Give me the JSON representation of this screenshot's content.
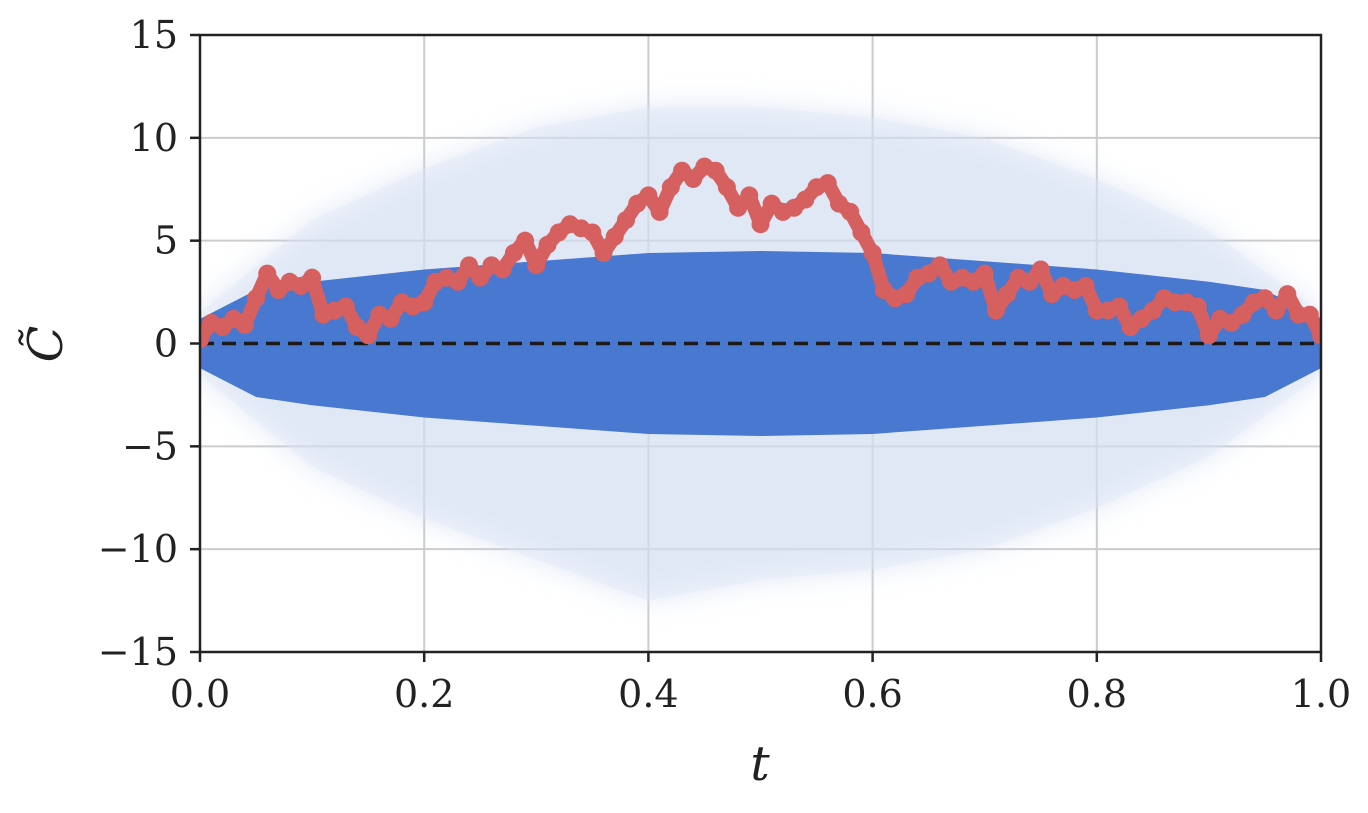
{
  "chart_data": {
    "type": "scatter",
    "title": "",
    "xlabel": "t",
    "ylabel": "C̃",
    "xlim": [
      0.0,
      1.0
    ],
    "ylim": [
      -15,
      15
    ],
    "x_ticks": [
      "0.0",
      "0.2",
      "0.4",
      "0.6",
      "0.8",
      "1.0"
    ],
    "y_ticks": [
      "15",
      "10",
      "5",
      "0",
      "−5",
      "−10",
      "−15"
    ],
    "grid": true,
    "legend": "none",
    "reference_line": {
      "y": 0,
      "style": "dashed",
      "color": "#1a1a1a"
    },
    "colors": {
      "band": "#4878cf",
      "highlight": "#d65f5f",
      "grid": "#cccccc",
      "axis": "#222222"
    },
    "series": [
      {
        "kind": "scatter-band",
        "description_values": "dense cloud of sample paths",
        "core_upper": [
          [
            0.0,
            1.2
          ],
          [
            0.05,
            2.6
          ],
          [
            0.1,
            3.0
          ],
          [
            0.2,
            3.6
          ],
          [
            0.3,
            4.0
          ],
          [
            0.4,
            4.4
          ],
          [
            0.5,
            4.5
          ],
          [
            0.6,
            4.4
          ],
          [
            0.7,
            4.0
          ],
          [
            0.8,
            3.6
          ],
          [
            0.9,
            3.0
          ],
          [
            0.95,
            2.6
          ],
          [
            1.0,
            1.2
          ]
        ],
        "core_lower": [
          [
            0.0,
            -1.2
          ],
          [
            0.05,
            -2.6
          ],
          [
            0.1,
            -3.0
          ],
          [
            0.2,
            -3.6
          ],
          [
            0.3,
            -4.0
          ],
          [
            0.4,
            -4.4
          ],
          [
            0.5,
            -4.5
          ],
          [
            0.6,
            -4.4
          ],
          [
            0.7,
            -4.0
          ],
          [
            0.8,
            -3.6
          ],
          [
            0.9,
            -3.0
          ],
          [
            0.95,
            -2.6
          ],
          [
            1.0,
            -1.2
          ]
        ],
        "halo_upper": [
          [
            0.0,
            1.5
          ],
          [
            0.1,
            6.0
          ],
          [
            0.2,
            8.5
          ],
          [
            0.3,
            10.5
          ],
          [
            0.4,
            11.5
          ],
          [
            0.5,
            11.5
          ],
          [
            0.6,
            11.0
          ],
          [
            0.7,
            10.0
          ],
          [
            0.8,
            8.0
          ],
          [
            0.9,
            5.5
          ],
          [
            1.0,
            1.5
          ]
        ],
        "halo_lower": [
          [
            0.0,
            -1.5
          ],
          [
            0.1,
            -6.0
          ],
          [
            0.2,
            -8.5
          ],
          [
            0.3,
            -10.5
          ],
          [
            0.4,
            -12.5
          ],
          [
            0.5,
            -11.5
          ],
          [
            0.6,
            -11.0
          ],
          [
            0.7,
            -10.0
          ],
          [
            0.8,
            -8.0
          ],
          [
            0.9,
            -5.5
          ],
          [
            1.0,
            -1.5
          ]
        ]
      },
      {
        "kind": "highlighted-path",
        "x": [
          0.0,
          0.01,
          0.02,
          0.03,
          0.04,
          0.05,
          0.06,
          0.07,
          0.08,
          0.09,
          0.1,
          0.11,
          0.12,
          0.13,
          0.14,
          0.15,
          0.16,
          0.17,
          0.18,
          0.19,
          0.2,
          0.21,
          0.22,
          0.23,
          0.24,
          0.25,
          0.26,
          0.27,
          0.28,
          0.29,
          0.3,
          0.31,
          0.32,
          0.33,
          0.34,
          0.35,
          0.36,
          0.37,
          0.38,
          0.39,
          0.4,
          0.41,
          0.42,
          0.43,
          0.44,
          0.45,
          0.46,
          0.47,
          0.48,
          0.49,
          0.5,
          0.51,
          0.52,
          0.53,
          0.54,
          0.55,
          0.56,
          0.57,
          0.58,
          0.59,
          0.6,
          0.61,
          0.62,
          0.63,
          0.64,
          0.65,
          0.66,
          0.67,
          0.68,
          0.69,
          0.7,
          0.71,
          0.72,
          0.73,
          0.74,
          0.75,
          0.76,
          0.77,
          0.78,
          0.79,
          0.8,
          0.81,
          0.82,
          0.83,
          0.84,
          0.85,
          0.86,
          0.87,
          0.88,
          0.89,
          0.9,
          0.91,
          0.92,
          0.93,
          0.94,
          0.95,
          0.96,
          0.97,
          0.98,
          0.99,
          1.0
        ],
        "y": [
          0.2,
          1.0,
          0.8,
          1.2,
          0.9,
          2.2,
          3.4,
          2.6,
          3.0,
          2.8,
          3.2,
          1.4,
          1.6,
          1.8,
          0.8,
          0.4,
          1.4,
          1.2,
          2.0,
          1.8,
          2.0,
          3.0,
          3.2,
          3.0,
          3.8,
          3.2,
          3.8,
          3.6,
          4.4,
          5.0,
          3.8,
          4.8,
          5.4,
          5.8,
          5.6,
          5.4,
          4.4,
          5.2,
          6.0,
          6.8,
          7.2,
          6.4,
          7.6,
          8.4,
          8.0,
          8.6,
          8.4,
          7.6,
          6.6,
          7.2,
          5.8,
          6.8,
          6.4,
          6.6,
          7.0,
          7.6,
          7.8,
          6.8,
          6.4,
          5.4,
          4.4,
          2.6,
          2.2,
          2.4,
          3.2,
          3.4,
          3.8,
          3.0,
          3.2,
          3.0,
          3.4,
          1.6,
          2.4,
          3.2,
          3.0,
          3.6,
          2.4,
          2.8,
          2.6,
          2.8,
          1.6,
          1.6,
          1.8,
          0.8,
          1.2,
          1.6,
          2.2,
          2.0,
          2.0,
          1.8,
          0.4,
          1.2,
          1.0,
          1.4,
          2.0,
          2.2,
          1.6,
          2.4,
          1.4,
          1.4,
          0.4
        ]
      }
    ]
  }
}
